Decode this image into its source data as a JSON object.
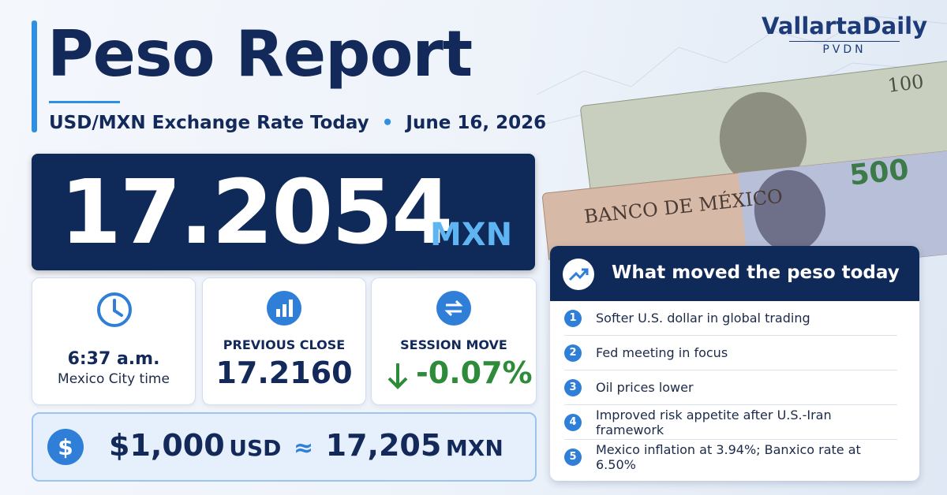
{
  "brand": {
    "name": "VallartaDaily",
    "sub": "PVDN"
  },
  "header": {
    "title": "Peso Report",
    "subtitle": "USD/MXN Exchange Rate Today",
    "date": "June 16, 2026"
  },
  "rate": {
    "value": "17.2054",
    "unit": "MXN"
  },
  "stats": [
    {
      "label": "6:37 a.m.",
      "sub": "Mexico City time"
    },
    {
      "label": "PREVIOUS CLOSE",
      "value": "17.2160"
    },
    {
      "label": "SESSION MOVE",
      "value": "-0.07%"
    }
  ],
  "conversion": {
    "icon": "$",
    "usd_amount": "$1,000",
    "usd_unit": "USD",
    "approx": "≈",
    "mxn_amount": "17,205",
    "mxn_unit": "MXN"
  },
  "panel": {
    "title": "What moved the peso today",
    "items": [
      {
        "number": "1",
        "text": "Softer U.S. dollar in global trading"
      },
      {
        "number": "2",
        "text": "Fed meeting in focus"
      },
      {
        "number": "3",
        "text": "Oil prices lower"
      },
      {
        "number": "4",
        "text": "Improved risk appetite after U.S.-Iran framework"
      },
      {
        "number": "5",
        "text": "Mexico inflation at 3.94%; Banxico rate at 6.50%"
      }
    ]
  },
  "notes": {
    "mx_bank": "BANCO DE MÉXICO",
    "mx_value": "500",
    "us_value": "100"
  }
}
